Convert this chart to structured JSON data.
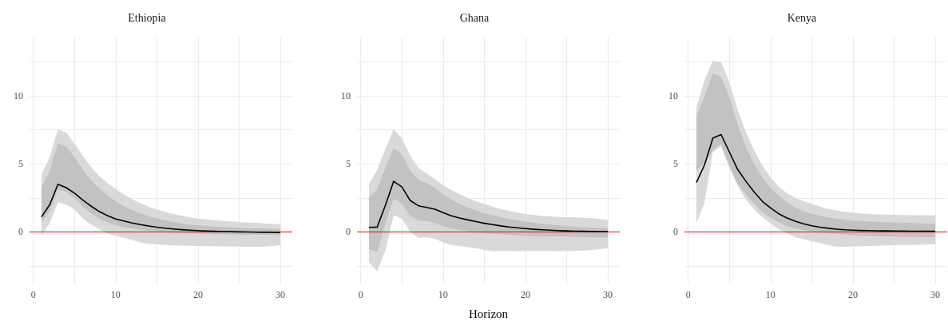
{
  "chart_data": [
    {
      "type": "line",
      "title": "Ethiopia",
      "x": [
        1,
        2,
        3,
        4,
        5,
        6,
        7,
        8,
        9,
        10,
        11,
        12,
        13,
        14,
        15,
        16,
        17,
        18,
        19,
        20,
        21,
        22,
        23,
        24,
        25,
        26,
        27,
        28,
        29,
        30
      ],
      "xlim": [
        -0.45,
        31.45
      ],
      "xticks": [
        0,
        {
          "value": 5,
          "label": null
        },
        10,
        {
          "value": 15,
          "label": null
        },
        20,
        {
          "value": 25,
          "label": null
        },
        30
      ],
      "ylim": [
        -3.8,
        14.3
      ],
      "yticks": [
        {
          "value": -2.5,
          "label": null
        },
        0,
        {
          "value": 2.5,
          "label": null
        },
        5,
        {
          "value": 7.5,
          "label": null
        },
        10,
        {
          "value": 12.5,
          "label": null
        }
      ],
      "grid": true,
      "ref_lines": [
        {
          "axis": "y",
          "value": 0,
          "color": "#ff0000"
        }
      ],
      "series": [
        {
          "color": "#d9d9d9",
          "values": [
            null,
            null,
            null,
            null,
            null,
            null,
            null,
            null,
            null,
            null,
            null,
            null,
            null,
            null,
            null,
            null,
            null,
            null,
            null,
            null,
            null,
            null,
            null,
            null,
            null,
            null,
            null,
            null,
            null,
            null
          ],
          "lower": [
            -0.23,
            0.63,
            2.2,
            2.0,
            1.65,
            1.0,
            0.55,
            0.2,
            -0.1,
            -0.3,
            -0.43,
            -0.6,
            -0.78,
            -0.88,
            -0.94,
            -0.97,
            -0.99,
            -1.01,
            -1.03,
            -1.04,
            -1.05,
            -1.06,
            -1.07,
            -1.08,
            -1.08,
            -1.09,
            -1.09,
            -1.08,
            -1.04,
            -0.98
          ],
          "upper": [
            4.2,
            5.5,
            7.55,
            7.3,
            6.5,
            5.6,
            4.8,
            4.1,
            3.6,
            3.15,
            2.75,
            2.4,
            2.1,
            1.85,
            1.65,
            1.47,
            1.32,
            1.2,
            1.08,
            0.98,
            0.92,
            0.86,
            0.81,
            0.77,
            0.73,
            0.69,
            0.66,
            0.62,
            0.59,
            0.55
          ]
        },
        {
          "color": "#c2c2c2",
          "values": [
            null,
            null,
            null,
            null,
            null,
            null,
            null,
            null,
            null,
            null,
            null,
            null,
            null,
            null,
            null,
            null,
            null,
            null,
            null,
            null,
            null,
            null,
            null,
            null,
            null,
            null,
            null,
            null,
            null,
            null
          ],
          "lower": [
            0.7,
            1.5,
            3.1,
            2.95,
            2.45,
            1.85,
            1.37,
            0.98,
            0.7,
            0.5,
            0.35,
            0.24,
            0.15,
            0.08,
            0.03,
            -0.01,
            -0.05,
            -0.08,
            -0.11,
            -0.14,
            -0.16,
            -0.18,
            -0.19,
            -0.2,
            -0.21,
            -0.21,
            -0.22,
            -0.22,
            -0.23,
            -0.23
          ],
          "upper": [
            3.3,
            4.5,
            6.5,
            6.3,
            5.5,
            4.6,
            3.8,
            3.2,
            2.7,
            2.25,
            1.9,
            1.6,
            1.35,
            1.15,
            0.98,
            0.84,
            0.72,
            0.62,
            0.54,
            0.47,
            0.42,
            0.38,
            0.34,
            0.31,
            0.29,
            0.27,
            0.25,
            0.23,
            0.21,
            0.2
          ]
        },
        {
          "color": "#000000",
          "values": [
            1.1,
            2.0,
            3.5,
            3.25,
            2.85,
            2.35,
            1.9,
            1.5,
            1.2,
            0.95,
            0.8,
            0.65,
            0.53,
            0.43,
            0.34,
            0.27,
            0.21,
            0.16,
            0.12,
            0.09,
            0.06,
            0.04,
            0.02,
            0.01,
            0,
            -0.01,
            -0.02,
            -0.03,
            -0.04,
            -0.05
          ]
        }
      ]
    },
    {
      "type": "line",
      "title": "Ghana",
      "xlabel": "Horizon",
      "x": [
        1,
        2,
        3,
        4,
        5,
        6,
        7,
        8,
        9,
        10,
        11,
        12,
        13,
        14,
        15,
        16,
        17,
        18,
        19,
        20,
        21,
        22,
        23,
        24,
        25,
        26,
        27,
        28,
        29,
        30
      ],
      "xlim": [
        -0.45,
        31.45
      ],
      "xticks": [
        0,
        {
          "value": 5,
          "label": null
        },
        10,
        {
          "value": 15,
          "label": null
        },
        20,
        {
          "value": 25,
          "label": null
        },
        30
      ],
      "ylim": [
        -3.8,
        14.3
      ],
      "yticks": [
        {
          "value": -2.5,
          "label": null
        },
        0,
        {
          "value": 2.5,
          "label": null
        },
        5,
        {
          "value": 7.5,
          "label": null
        },
        10,
        {
          "value": 12.5,
          "label": null
        }
      ],
      "grid": true,
      "ref_lines": [
        {
          "axis": "y",
          "value": 0,
          "color": "#ff0000"
        }
      ],
      "series": [
        {
          "color": "#d9d9d9",
          "values": [
            null,
            null,
            null,
            null,
            null,
            null,
            null,
            null,
            null,
            null,
            null,
            null,
            null,
            null,
            null,
            null,
            null,
            null,
            null,
            null,
            null,
            null,
            null,
            null,
            null,
            null,
            null,
            null,
            null,
            null
          ],
          "lower": [
            -2.25,
            -2.9,
            -1.37,
            1.22,
            0.98,
            0,
            -0.43,
            -0.39,
            -0.51,
            -0.78,
            -0.98,
            -1.04,
            -1.14,
            -1.22,
            -1.33,
            -1.43,
            -1.41,
            -1.41,
            -1.42,
            -1.42,
            -1.4,
            -1.4,
            -1.41,
            -1.42,
            -1.42,
            -1.41,
            -1.38,
            -1.33,
            -1.28,
            -1.22
          ],
          "upper": [
            3.53,
            4.55,
            6.1,
            7.55,
            6.9,
            5.6,
            4.7,
            4.3,
            3.9,
            3.43,
            3.08,
            2.78,
            2.5,
            2.25,
            2.06,
            1.86,
            1.69,
            1.53,
            1.41,
            1.31,
            1.24,
            1.18,
            1.14,
            1.11,
            1.08,
            1.06,
            1.04,
            1.0,
            0.94,
            0.88
          ]
        },
        {
          "color": "#c2c2c2",
          "values": [
            null,
            null,
            null,
            null,
            null,
            null,
            null,
            null,
            null,
            null,
            null,
            null,
            null,
            null,
            null,
            null,
            null,
            null,
            null,
            null,
            null,
            null,
            null,
            null,
            null,
            null,
            null,
            null,
            null,
            null
          ],
          "lower": [
            -1.27,
            -1.47,
            0.59,
            2.45,
            2.06,
            1.18,
            0.82,
            0.78,
            0.65,
            0.43,
            0.24,
            0.14,
            0.04,
            -0.04,
            -0.1,
            -0.14,
            -0.18,
            -0.22,
            -0.26,
            -0.29,
            -0.31,
            -0.32,
            -0.33,
            -0.34,
            -0.35,
            -0.36,
            -0.38,
            -0.4,
            -0.42,
            -0.43
          ],
          "upper": [
            2.5,
            3.14,
            4.7,
            6.18,
            5.7,
            4.5,
            3.82,
            3.57,
            3.24,
            2.75,
            2.4,
            2.06,
            1.8,
            1.57,
            1.37,
            1.22,
            1.08,
            0.96,
            0.84,
            0.75,
            0.67,
            0.6,
            0.54,
            0.48,
            0.43,
            0.39,
            0.35,
            0.31,
            0.28,
            0.25
          ]
        },
        {
          "color": "#000000",
          "values": [
            0.33,
            0.35,
            1.96,
            3.72,
            3.3,
            2.31,
            1.92,
            1.8,
            1.67,
            1.41,
            1.18,
            1.02,
            0.88,
            0.75,
            0.63,
            0.53,
            0.44,
            0.36,
            0.3,
            0.24,
            0.19,
            0.15,
            0.12,
            0.09,
            0.07,
            0.05,
            0.04,
            0.03,
            0.02,
            0.02
          ]
        }
      ]
    },
    {
      "type": "line",
      "title": "Kenya",
      "x": [
        1,
        2,
        3,
        4,
        5,
        6,
        7,
        8,
        9,
        10,
        11,
        12,
        13,
        14,
        15,
        16,
        17,
        18,
        19,
        20,
        21,
        22,
        23,
        24,
        25,
        26,
        27,
        28,
        29,
        30
      ],
      "xlim": [
        -0.45,
        31.45
      ],
      "xticks": [
        0,
        {
          "value": 5,
          "label": null
        },
        10,
        {
          "value": 15,
          "label": null
        },
        20,
        {
          "value": 25,
          "label": null
        },
        30
      ],
      "ylim": [
        -3.8,
        14.3
      ],
      "yticks": [
        {
          "value": -2.5,
          "label": null
        },
        0,
        {
          "value": 2.5,
          "label": null
        },
        5,
        {
          "value": 7.5,
          "label": null
        },
        10,
        {
          "value": 12.5,
          "label": null
        }
      ],
      "grid": true,
      "ref_lines": [
        {
          "axis": "y",
          "value": 0,
          "color": "#ff0000"
        }
      ],
      "series": [
        {
          "color": "#d9d9d9",
          "values": [
            null,
            null,
            null,
            null,
            null,
            null,
            null,
            null,
            null,
            null,
            null,
            null,
            null,
            null,
            null,
            null,
            null,
            null,
            null,
            null,
            null,
            null,
            null,
            null,
            null,
            null,
            null,
            null,
            null,
            null
          ],
          "lower": [
            0.63,
            2.16,
            5.88,
            6.27,
            4.7,
            3.43,
            2.35,
            1.67,
            1.08,
            0.63,
            0.2,
            -0.1,
            -0.39,
            -0.55,
            -0.69,
            -0.82,
            -0.98,
            -1.08,
            -1.1,
            -1.08,
            -1.06,
            -1.04,
            -1.02,
            -1.0,
            -0.98,
            -0.97,
            -0.96,
            -0.95,
            -0.93,
            -0.92
          ],
          "upper": [
            9.16,
            11.2,
            12.6,
            12.5,
            11.0,
            9.0,
            7.35,
            5.98,
            4.9,
            4.02,
            3.33,
            2.84,
            2.5,
            2.25,
            2.06,
            1.86,
            1.7,
            1.58,
            1.48,
            1.41,
            1.36,
            1.32,
            1.29,
            1.27,
            1.25,
            1.24,
            1.23,
            1.23,
            1.22,
            1.22
          ]
        },
        {
          "color": "#c2c2c2",
          "values": [
            null,
            null,
            null,
            null,
            null,
            null,
            null,
            null,
            null,
            null,
            null,
            null,
            null,
            null,
            null,
            null,
            null,
            null,
            null,
            null,
            null,
            null,
            null,
            null,
            null,
            null,
            null,
            null,
            null,
            null
          ],
          "lower": [
            4.51,
            5.1,
            5.98,
            6.47,
            4.9,
            3.53,
            2.75,
            2.06,
            1.47,
            1.02,
            0.69,
            0.43,
            0.25,
            0.14,
            0.04,
            -0.04,
            -0.1,
            -0.14,
            -0.2,
            -0.24,
            -0.27,
            -0.3,
            -0.32,
            -0.34,
            -0.35,
            -0.36,
            -0.37,
            -0.38,
            -0.39,
            -0.39
          ],
          "upper": [
            8.47,
            10.0,
            11.67,
            11.4,
            9.9,
            7.94,
            6.27,
            5.0,
            4.02,
            3.24,
            2.65,
            2.16,
            1.8,
            1.53,
            1.33,
            1.18,
            1.07,
            0.98,
            0.9,
            0.82,
            0.78,
            0.75,
            0.72,
            0.7,
            0.69,
            0.67,
            0.65,
            0.63,
            0.61,
            0.59
          ]
        },
        {
          "color": "#000000",
          "values": [
            3.63,
            4.94,
            6.9,
            7.16,
            5.88,
            4.6,
            3.73,
            2.94,
            2.25,
            1.76,
            1.33,
            1.02,
            0.78,
            0.59,
            0.45,
            0.34,
            0.26,
            0.2,
            0.15,
            0.12,
            0.1,
            0.09,
            0.08,
            0.07,
            0.06,
            0.06,
            0.05,
            0.05,
            0.05,
            0.05
          ]
        }
      ]
    }
  ]
}
